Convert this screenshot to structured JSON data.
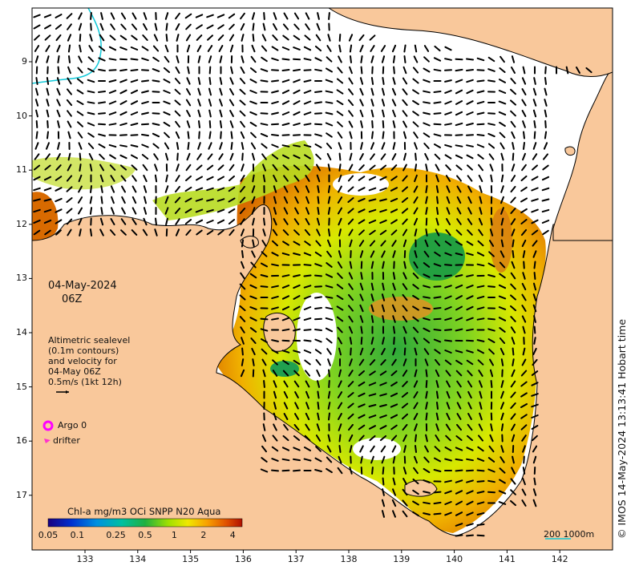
{
  "map": {
    "date": "04-May-2024",
    "time": "06Z",
    "altimetry_lines": [
      "Altimetric sealevel",
      "(0.1m contours)",
      "and velocity for",
      "04-May 06Z",
      "0.5m/s (1kt 12h)"
    ],
    "legend": {
      "argo": "Argo 0",
      "drifter": "drifter",
      "argo_color": "#ff00ff",
      "drifter_color": "#ff33cc"
    },
    "credit": "© IMOS 14-May-2024 13:13:41 Hobart time",
    "lat_ticks": [
      "9",
      "10",
      "11",
      "12",
      "13",
      "14",
      "15",
      "16",
      "17"
    ],
    "lat_values": [
      -9,
      -10,
      -11,
      -12,
      -13,
      -14,
      -15,
      -16,
      -17
    ],
    "lon_ticks": [
      "133",
      "134",
      "135",
      "136",
      "137",
      "138",
      "139",
      "140",
      "141",
      "142"
    ],
    "lon_values": [
      133,
      134,
      135,
      136,
      137,
      138,
      139,
      140,
      141,
      142
    ],
    "colorbar": {
      "title": "Chl-a mg/m3 OCi SNPP N20 Aqua",
      "ticks": [
        "0.05",
        "0.1",
        "0.25",
        "0.5",
        "1",
        "2",
        "4"
      ],
      "tick_values": [
        0.05,
        0.1,
        0.25,
        0.5,
        1,
        2,
        4
      ]
    },
    "scale_bar": "200  1000m",
    "colors": {
      "land": "#f9c89b",
      "ocean_nodata": "#ffffff",
      "coastline": "#000000",
      "vectors": "#000000",
      "bathy_contour": "#10c8d8"
    }
  }
}
